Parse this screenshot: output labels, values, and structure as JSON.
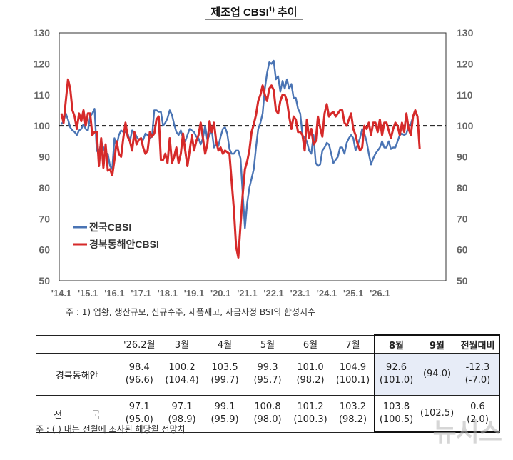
{
  "chart_data": {
    "type": "line",
    "title": "제조업  CBSI",
    "title_superscript": "1)",
    "title_suffix": " 추이",
    "ylim": [
      50,
      130
    ],
    "yticks": [
      50,
      60,
      70,
      80,
      90,
      100,
      110,
      120,
      130
    ],
    "reference_line": 100,
    "x_tick_labels": [
      "'14.1",
      "'15.1",
      "'16.1",
      "'17.1",
      "'18.1",
      "'19.1",
      "'20.1",
      "'21.1",
      "'22.1",
      "'23.1",
      "'24.1",
      "'25.1",
      "'26.1"
    ],
    "x_start": "2014.1",
    "legend_position": "center-left",
    "series": [
      {
        "name": "전국CBSI",
        "color": "#4a74b4",
        "values": [
          100.5,
          101.5,
          104,
          102,
          99.5,
          98.5,
          98,
          97,
          98.5,
          99,
          100.5,
          99,
          98.5,
          103,
          104,
          105.5,
          92,
          91,
          95,
          93,
          91,
          91,
          87,
          86,
          96,
          93.5,
          97,
          98.5,
          98,
          98,
          97.5,
          95,
          98.5,
          98,
          96.5,
          95.5,
          96,
          95.5,
          97.5,
          97,
          96,
          96.5,
          105,
          105,
          104.5,
          104.5,
          100,
          101,
          102.5,
          105,
          103.5,
          100.5,
          98,
          97,
          98.5,
          96,
          95,
          97,
          99,
          98.5,
          98,
          96.5,
          96,
          94,
          96,
          100,
          95.5,
          97,
          98.5,
          93,
          94,
          93.5,
          96.5,
          99,
          99.5,
          97.5,
          92.5,
          91,
          91,
          92,
          92,
          89.5,
          78,
          67,
          75,
          80,
          83,
          86,
          93,
          99,
          101,
          104,
          112,
          117,
          120.5,
          120,
          121,
          115,
          116,
          111,
          114.5,
          112,
          115,
          112,
          113.5,
          109,
          109,
          105.5,
          104,
          97,
          96,
          95,
          92,
          91,
          97,
          88,
          87,
          87.5,
          92,
          93,
          94.5,
          94,
          91,
          88,
          89,
          90,
          93,
          93,
          91,
          94.5,
          96,
          97,
          96,
          92,
          94,
          96,
          99,
          97.5,
          95,
          91,
          87.5,
          89.5,
          91,
          92,
          93,
          95,
          93,
          93,
          95,
          92.5,
          93,
          93,
          95,
          97,
          97.5,
          97,
          97.5,
          100,
          100.5,
          103,
          104
        ]
      },
      {
        "name": "경북동해안CBSI",
        "color": "#d62a2a",
        "values": [
          104,
          101,
          108,
          115,
          112,
          105,
          103,
          99,
          104,
          101.5,
          105,
          100,
          104,
          104,
          97,
          98,
          98,
          87,
          96,
          86.5,
          94,
          85.5,
          86,
          84,
          89,
          95,
          91,
          90,
          96,
          101,
          96.5,
          95,
          92,
          98,
          94,
          95.5,
          96,
          93,
          91,
          92,
          98,
          96.5,
          97.5,
          102,
          103,
          89,
          89,
          91,
          88,
          96,
          88,
          90,
          93,
          88,
          91,
          97.5,
          92,
          87,
          92,
          97,
          92,
          95,
          97,
          101,
          96,
          91,
          94,
          101.5,
          98,
          101,
          95,
          92,
          93,
          91,
          92,
          91.5,
          91,
          82,
          73,
          61,
          57.5,
          68,
          78,
          86,
          88.5,
          92,
          98,
          100.5,
          103.5,
          108,
          110,
          113,
          110,
          108,
          112,
          113,
          111.5,
          105,
          104,
          108,
          110,
          110,
          108,
          103,
          99,
          103,
          102,
          98,
          98,
          97,
          92,
          102,
          96,
          99,
          94,
          95,
          103,
          99.5,
          96.5,
          104,
          107,
          103,
          104,
          104.5,
          103,
          104,
          105,
          105,
          101,
          100,
          102,
          104,
          99,
          97,
          94,
          92,
          93,
          100,
          99,
          101,
          97,
          101,
          101,
          98,
          102,
          97,
          101,
          101,
          98.5,
          96,
          99,
          101,
          100,
          97,
          101,
          98,
          104,
          99,
          97,
          103,
          105,
          103,
          92.6
        ]
      }
    ]
  },
  "notes": {
    "chart_note": "주 :  1) 업황, 생산규모, 신규수주, 제품재고, 자금사정 BSI의 합성지수",
    "table_note": "주 : (    ) 내는 전월에 조사된 해당월 전망치"
  },
  "table": {
    "headers": [
      "'26.2월",
      "3월",
      "4월",
      "5월",
      "6월",
      "7월",
      "8월",
      "9월",
      "전월대비"
    ],
    "rows": [
      {
        "label": "경북동해안",
        "values": [
          "98.4",
          "100.2",
          "103.5",
          "99.3",
          "101.0",
          "104.9",
          "92.6",
          "",
          "-12.3"
        ],
        "forecasts": [
          "(96.6)",
          "(104.4)",
          "(99.7)",
          "(95.7)",
          "(98.2)",
          "(100.1)",
          "(101.0)",
          "(94.0)",
          "(-7.0)"
        ]
      },
      {
        "label": "전          국",
        "values": [
          "97.1",
          "97.1",
          "99.1",
          "100.8",
          "101.2",
          "103.2",
          "103.8",
          "",
          "0.6"
        ],
        "forecasts": [
          "(95.0)",
          "(98.9)",
          "(95.9)",
          "(98.0)",
          "(100.3)",
          "(98.2)",
          "(100.5)",
          "(102.5)",
          "(2.0)"
        ]
      }
    ]
  },
  "watermark": "뉴시스"
}
